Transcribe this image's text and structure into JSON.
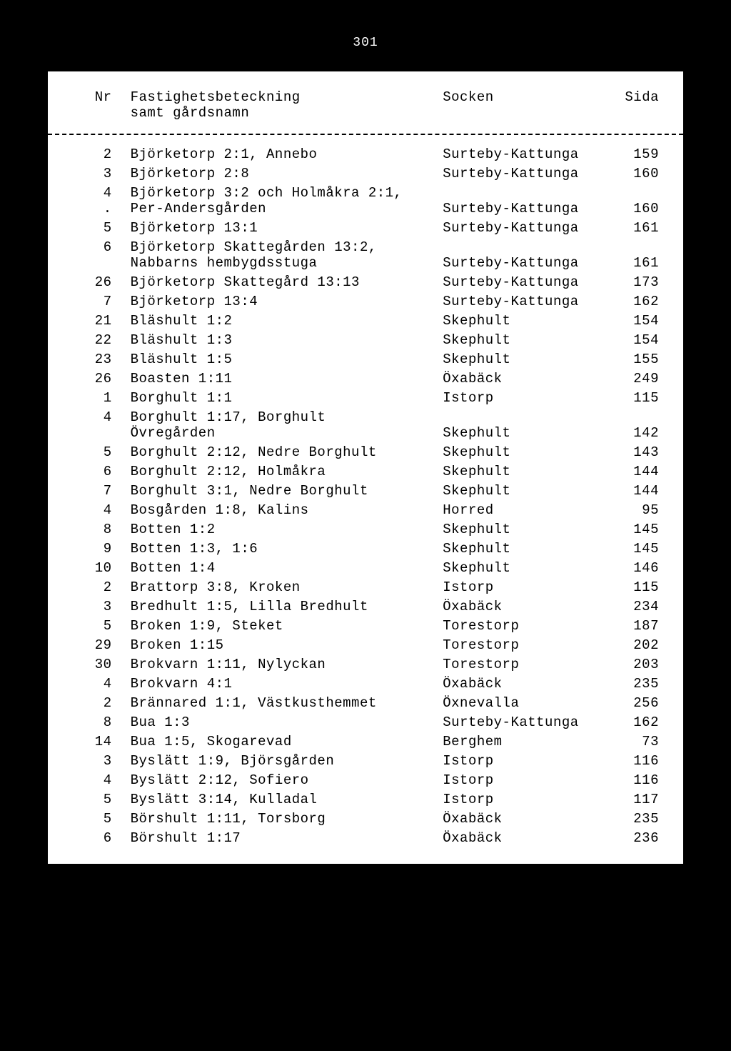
{
  "page_number": "301",
  "headers": {
    "nr": "Nr",
    "fastighet": "Fastighetsbeteckning",
    "fastighet_sub": "samt gårdsnamn",
    "socken": "Socken",
    "sida": "Sida"
  },
  "rows": [
    {
      "nr": "2",
      "fast": "Björketorp 2:1, Annebo",
      "sock": "Surteby-Kattunga",
      "sida": "159"
    },
    {
      "nr": "3",
      "fast": "Björketorp 2:8",
      "sock": "Surteby-Kattunga",
      "sida": "160"
    },
    {
      "nr": "4\n.",
      "fast": "Björketorp 3:2 och Holmåkra 2:1,\nPer-Andersgården",
      "sock": "\nSurteby-Kattunga",
      "sida": "\n160"
    },
    {
      "nr": "5",
      "fast": "Björketorp 13:1",
      "sock": "Surteby-Kattunga",
      "sida": "161"
    },
    {
      "nr": "6",
      "fast": "Björketorp Skattegården 13:2,\nNabbarns hembygdsstuga",
      "sock": "\nSurteby-Kattunga",
      "sida": "\n161"
    },
    {
      "nr": "26",
      "fast": "Björketorp Skattegård 13:13",
      "sock": "Surteby-Kattunga",
      "sida": "173"
    },
    {
      "nr": "7",
      "fast": "Björketorp 13:4",
      "sock": "Surteby-Kattunga",
      "sida": "162"
    },
    {
      "nr": "21",
      "fast": "Bläshult 1:2",
      "sock": "Skephult",
      "sida": "154"
    },
    {
      "nr": "22",
      "fast": "Bläshult 1:3",
      "sock": "Skephult",
      "sida": "154"
    },
    {
      "nr": "23",
      "fast": "Bläshult 1:5",
      "sock": "Skephult",
      "sida": "155"
    },
    {
      "nr": "26",
      "fast": "Boasten 1:11",
      "sock": "Öxabäck",
      "sida": "249"
    },
    {
      "nr": "1",
      "fast": "Borghult 1:1",
      "sock": "Istorp",
      "sida": "115"
    },
    {
      "nr": "4",
      "fast": "Borghult 1:17, Borghult\nÖvregården",
      "sock": "\nSkephult",
      "sida": "\n142"
    },
    {
      "nr": "5",
      "fast": "Borghult 2:12, Nedre Borghult",
      "sock": "Skephult",
      "sida": "143"
    },
    {
      "nr": "6",
      "fast": "Borghult 2:12, Holmåkra",
      "sock": "Skephult",
      "sida": "144"
    },
    {
      "nr": "7",
      "fast": "Borghult 3:1, Nedre Borghult",
      "sock": "Skephult",
      "sida": "144"
    },
    {
      "nr": "4",
      "fast": "Bosgården 1:8, Kalins",
      "sock": "Horred",
      "sida": "95"
    },
    {
      "nr": "8",
      "fast": "Botten 1:2",
      "sock": "Skephult",
      "sida": "145"
    },
    {
      "nr": "9",
      "fast": "Botten 1:3, 1:6",
      "sock": "Skephult",
      "sida": "145"
    },
    {
      "nr": "10",
      "fast": "Botten 1:4",
      "sock": "Skephult",
      "sida": "146"
    },
    {
      "nr": "2",
      "fast": "Brattorp 3:8, Kroken",
      "sock": "Istorp",
      "sida": "115"
    },
    {
      "nr": "3",
      "fast": "Bredhult 1:5, Lilla Bredhult",
      "sock": "Öxabäck",
      "sida": "234"
    },
    {
      "nr": "5",
      "fast": "Broken 1:9, Steket",
      "sock": "Torestorp",
      "sida": "187"
    },
    {
      "nr": "29",
      "fast": "Broken 1:15",
      "sock": "Torestorp",
      "sida": "202"
    },
    {
      "nr": "30",
      "fast": "Brokvarn 1:11, Nylyckan",
      "sock": "Torestorp",
      "sida": "203"
    },
    {
      "nr": "4",
      "fast": "Brokvarn 4:1",
      "sock": "Öxabäck",
      "sida": "235"
    },
    {
      "nr": "2",
      "fast": "Brännared 1:1, Västkusthemmet",
      "sock": "Öxnevalla",
      "sida": "256"
    },
    {
      "nr": "8",
      "fast": "Bua 1:3",
      "sock": "Surteby-Kattunga",
      "sida": "162"
    },
    {
      "nr": "14",
      "fast": "Bua 1:5, Skogarevad",
      "sock": "Berghem",
      "sida": "73"
    },
    {
      "nr": "3",
      "fast": "Byslätt 1:9, Björsgården",
      "sock": "Istorp",
      "sida": "116"
    },
    {
      "nr": "4",
      "fast": "Byslätt 2:12, Sofiero",
      "sock": "Istorp",
      "sida": "116"
    },
    {
      "nr": "5",
      "fast": "Byslätt 3:14, Kulladal",
      "sock": "Istorp",
      "sida": "117"
    },
    {
      "nr": "5",
      "fast": "Börshult 1:11, Torsborg",
      "sock": "Öxabäck",
      "sida": "235"
    },
    {
      "nr": "6",
      "fast": "Börshult 1:17",
      "sock": "Öxabäck",
      "sida": "236"
    }
  ]
}
